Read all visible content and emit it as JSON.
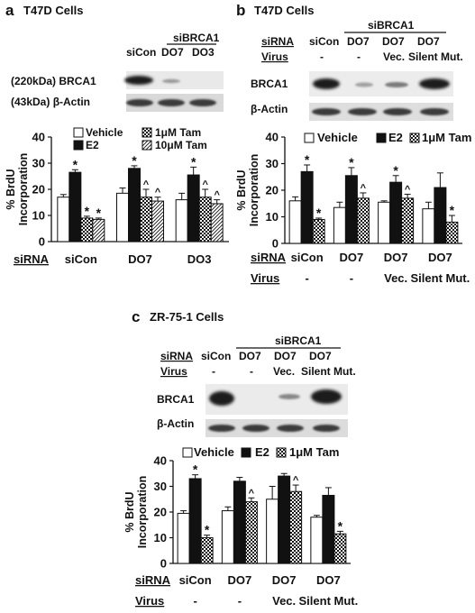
{
  "panel_a": {
    "letter": "a",
    "cells": "T47D Cells",
    "blot": {
      "group_label": "siBRCA1",
      "lanes": [
        "siCon",
        "DO7",
        "DO3"
      ],
      "row1_label": "(220kDa) BRCA1",
      "row2_label": "(43kDa) β-Actin"
    }
  },
  "panel_b": {
    "letter": "b",
    "cells": "T47D Cells",
    "blot": {
      "group_label": "siBRCA1",
      "sirna_label": "siRNA",
      "virus_label": "Virus",
      "lanes": [
        "siCon",
        "DO7",
        "DO7",
        "DO7"
      ],
      "virus": [
        "-",
        "-",
        "Vec.",
        "Silent Mut."
      ],
      "row1_label": "BRCA1",
      "row2_label": "β-Actin"
    }
  },
  "panel_c": {
    "letter": "c",
    "cells": "ZR-75-1 Cells",
    "blot": {
      "group_label": "siBRCA1",
      "sirna_label": "siRNA",
      "virus_label": "Virus",
      "lanes": [
        "siCon",
        "DO7",
        "DO7",
        "DO7"
      ],
      "virus": [
        "-",
        "-",
        "Vec.",
        "Silent Mut."
      ],
      "row1_label": "BRCA1",
      "row2_label": "β-Actin"
    }
  },
  "chart_data": [
    {
      "panel": "a",
      "type": "bar",
      "ylabel": "% BrdU Incorporation",
      "ylim": [
        0,
        40
      ],
      "yticks": [
        "0",
        "10",
        "20",
        "30",
        "40"
      ],
      "row_labels": [
        "siRNA"
      ],
      "categories": [
        "siCon",
        "DO7",
        "DO3"
      ],
      "legend": [
        "Vehicle",
        "E2",
        "1μM Tam",
        "10μM Tam"
      ],
      "series": [
        {
          "name": "Vehicle",
          "values": [
            17,
            18.5,
            16
          ],
          "errors": [
            1,
            2,
            2.5
          ],
          "marks": [
            "",
            "",
            ""
          ]
        },
        {
          "name": "E2",
          "values": [
            26.5,
            28,
            25.5
          ],
          "errors": [
            1,
            1,
            3
          ],
          "marks": [
            "*",
            "*",
            "*"
          ]
        },
        {
          "name": "1μM Tam",
          "values": [
            9,
            17,
            17
          ],
          "errors": [
            0.7,
            3,
            3
          ],
          "marks": [
            "*",
            "^",
            "^"
          ]
        },
        {
          "name": "10μM Tam",
          "values": [
            8.5,
            15.5,
            14.5
          ],
          "errors": [
            0.5,
            1.5,
            1.5
          ],
          "marks": [
            "*",
            "^",
            "^"
          ]
        }
      ]
    },
    {
      "panel": "b",
      "type": "bar",
      "ylabel": "% BrdU Incorporation",
      "ylim": [
        0,
        40
      ],
      "yticks": [
        "0",
        "10",
        "20",
        "30",
        "40"
      ],
      "row_labels": [
        "siRNA",
        "Virus"
      ],
      "categories": [
        "siCon",
        "DO7",
        "DO7",
        "DO7"
      ],
      "category_rows": [
        [
          "siCon",
          "DO7",
          "DO7",
          "DO7"
        ],
        [
          "-",
          "-",
          "Vec.",
          "Silent Mut."
        ]
      ],
      "legend": [
        "Vehicle",
        "E2",
        "1μM Tam"
      ],
      "series": [
        {
          "name": "Vehicle",
          "values": [
            16,
            13.5,
            15.5,
            13
          ],
          "errors": [
            1.5,
            2,
            0.5,
            2.5
          ],
          "marks": [
            "",
            "",
            "",
            ""
          ]
        },
        {
          "name": "E2",
          "values": [
            27,
            25.5,
            23,
            21
          ],
          "errors": [
            2.5,
            3,
            2.5,
            5.5
          ],
          "marks": [
            "*",
            "*",
            "*",
            ""
          ]
        },
        {
          "name": "1μM Tam",
          "values": [
            9,
            17,
            17,
            8
          ],
          "errors": [
            0.5,
            2,
            1.5,
            2.5
          ],
          "marks": [
            "*",
            "^",
            "^",
            "*"
          ]
        }
      ]
    },
    {
      "panel": "c",
      "type": "bar",
      "ylabel": "% BrdU Incorporation",
      "ylim": [
        0,
        40
      ],
      "yticks": [
        "0",
        "10",
        "20",
        "30",
        "40"
      ],
      "row_labels": [
        "siRNA",
        "Virus"
      ],
      "categories": [
        "siCon",
        "DO7",
        "DO7",
        "DO7"
      ],
      "category_rows": [
        [
          "siCon",
          "DO7",
          "DO7",
          "DO7"
        ],
        [
          "-",
          "-",
          "Vec.",
          "Silent Mut."
        ]
      ],
      "legend": [
        "Vehicle",
        "E2",
        "1μM Tam"
      ],
      "series": [
        {
          "name": "Vehicle",
          "values": [
            19.5,
            20.5,
            25,
            18
          ],
          "errors": [
            1,
            1.5,
            5,
            0.7
          ],
          "marks": [
            "",
            "",
            "",
            ""
          ]
        },
        {
          "name": "E2",
          "values": [
            33,
            32,
            34,
            26.5
          ],
          "errors": [
            1.5,
            1.5,
            1,
            3
          ],
          "marks": [
            "*",
            "",
            "",
            ""
          ]
        },
        {
          "name": "1μM Tam",
          "values": [
            10,
            24,
            28,
            11.5
          ],
          "errors": [
            1,
            1.5,
            2.5,
            1
          ],
          "marks": [
            "*",
            "^",
            "^",
            "*"
          ]
        }
      ]
    }
  ]
}
